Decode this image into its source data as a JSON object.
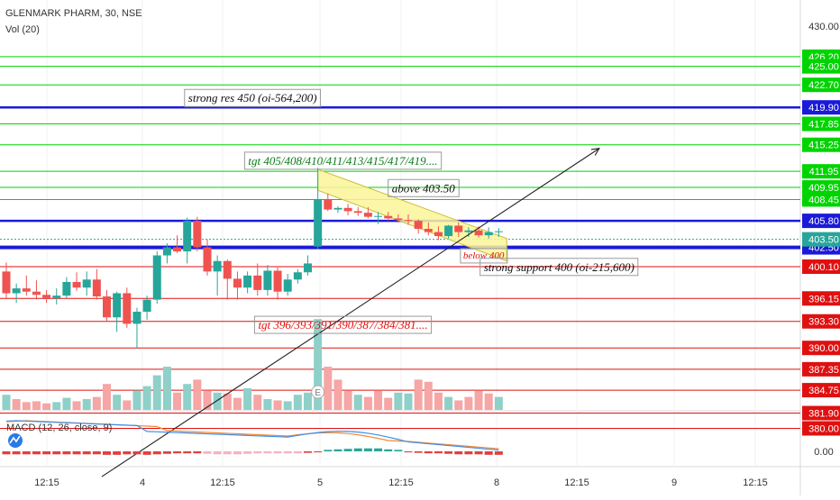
{
  "header": {
    "symbol_line": "GLENMARK PHARM, 30, NSE",
    "volume_label": "Vol (20)",
    "macd_label": "MACD (12, 26, close, 9)"
  },
  "colors": {
    "up": "#26a69a",
    "down": "#ef5350",
    "vol_up": "#8fd0c9",
    "vol_down": "#f5a6a5",
    "green_line": "#00d400",
    "blue_line": "#1a1ad8",
    "red_line": "#e01010",
    "channel_fill": "#fbf59a",
    "macd_line": "#3e8ee6",
    "signal_line": "#f08a3a",
    "hist_down": "#e04040",
    "hist_down_light": "#f5b3c0",
    "hist_up": "#26a69a"
  },
  "chart_data": {
    "type": "candlestick",
    "symbol": "GLENMARK PHARM",
    "timeframe": "30",
    "exchange": "NSE",
    "price_axis_ticks": [
      "430.00"
    ],
    "x_tick_labels": [
      "12:15",
      "4",
      "12:15",
      "5",
      "12:15",
      "8",
      "12:15",
      "9",
      "12:15"
    ],
    "ylim": [
      380,
      430
    ],
    "level_lines": [
      {
        "price": 426.2,
        "label": "426.20",
        "color": "green"
      },
      {
        "price": 425.0,
        "label": "425.00",
        "color": "green"
      },
      {
        "price": 422.7,
        "label": "422.70",
        "color": "green"
      },
      {
        "price": 419.9,
        "label": "419.90",
        "color": "blue"
      },
      {
        "price": 417.85,
        "label": "417.85",
        "color": "green"
      },
      {
        "price": 415.25,
        "label": "415.25",
        "color": "green"
      },
      {
        "price": 411.95,
        "label": "411.95",
        "color": "green"
      },
      {
        "price": 409.95,
        "label": "409.95",
        "color": "green"
      },
      {
        "price": 408.45,
        "label": "408.45",
        "color": "green"
      },
      {
        "price": 405.8,
        "label": "405.80",
        "color": "blue"
      },
      {
        "price": 402.5,
        "label": "402.50",
        "color": "blue"
      },
      {
        "price": 400.1,
        "label": "400.10",
        "color": "red"
      },
      {
        "price": 396.15,
        "label": "396.15",
        "color": "red"
      },
      {
        "price": 393.3,
        "label": "393.30",
        "color": "red"
      },
      {
        "price": 390.0,
        "label": "390.00",
        "color": "red"
      },
      {
        "price": 387.35,
        "label": "387.35",
        "color": "red"
      },
      {
        "price": 384.75,
        "label": "384.75",
        "color": "red"
      },
      {
        "price": 381.9,
        "label": "381.90",
        "color": "red"
      },
      {
        "price": 380.0,
        "label": "380.00",
        "color": "red"
      }
    ],
    "last_price": {
      "price": 403.5,
      "label": "403.50"
    },
    "annotations": [
      {
        "text": "strong res 450 (oi-564,200)",
        "anchor_price": 420.9,
        "bar": 24.5
      },
      {
        "text": "tgt 405/408/410/411/413/415/417/419....",
        "anchor_price": 413.1,
        "bar": 33.5
      },
      {
        "text": "above 403.50",
        "anchor_price": 409.7,
        "bar": 41.5
      },
      {
        "text": "below 400",
        "anchor_price": 401.4,
        "bar": 47.5
      },
      {
        "text": "strong support 400 (oi-215,600)",
        "anchor_price": 399.9,
        "bar": 55
      },
      {
        "text": "tgt 396/393/391/390/387/384/381....",
        "anchor_price": 392.7,
        "bar": 33.5
      }
    ],
    "candles": [
      {
        "o": 399.5,
        "h": 400.6,
        "l": 396.2,
        "c": 396.8
      },
      {
        "o": 396.8,
        "h": 398.0,
        "l": 395.6,
        "c": 397.4
      },
      {
        "o": 397.4,
        "h": 399.0,
        "l": 396.5,
        "c": 397.0
      },
      {
        "o": 397.0,
        "h": 398.4,
        "l": 396.0,
        "c": 396.6
      },
      {
        "o": 396.6,
        "h": 397.2,
        "l": 395.6,
        "c": 396.2
      },
      {
        "o": 396.2,
        "h": 397.4,
        "l": 395.4,
        "c": 396.5
      },
      {
        "o": 396.5,
        "h": 398.8,
        "l": 396.2,
        "c": 398.2
      },
      {
        "o": 398.2,
        "h": 399.4,
        "l": 397.1,
        "c": 397.5
      },
      {
        "o": 397.5,
        "h": 399.5,
        "l": 396.5,
        "c": 398.5
      },
      {
        "o": 398.5,
        "h": 399.8,
        "l": 396.0,
        "c": 396.4
      },
      {
        "o": 396.4,
        "h": 397.2,
        "l": 393.3,
        "c": 393.8
      },
      {
        "o": 393.8,
        "h": 397.0,
        "l": 392.0,
        "c": 396.8
      },
      {
        "o": 396.8,
        "h": 397.5,
        "l": 392.5,
        "c": 393.0
      },
      {
        "o": 393.0,
        "h": 395.0,
        "l": 390.0,
        "c": 394.5
      },
      {
        "o": 394.5,
        "h": 396.5,
        "l": 393.5,
        "c": 396.0
      },
      {
        "o": 396.0,
        "h": 402.0,
        "l": 395.5,
        "c": 401.5
      },
      {
        "o": 401.5,
        "h": 403.0,
        "l": 400.5,
        "c": 402.5
      },
      {
        "o": 402.5,
        "h": 404.0,
        "l": 401.8,
        "c": 402.0
      },
      {
        "o": 402.0,
        "h": 406.2,
        "l": 400.5,
        "c": 405.8
      },
      {
        "o": 405.8,
        "h": 406.3,
        "l": 402.0,
        "c": 402.5
      },
      {
        "o": 402.5,
        "h": 403.5,
        "l": 399.0,
        "c": 399.5
      },
      {
        "o": 399.5,
        "h": 401.5,
        "l": 396.5,
        "c": 400.8
      },
      {
        "o": 400.8,
        "h": 401.0,
        "l": 396.0,
        "c": 398.6
      },
      {
        "o": 398.6,
        "h": 399.5,
        "l": 396.0,
        "c": 397.5
      },
      {
        "o": 397.5,
        "h": 399.5,
        "l": 396.8,
        "c": 399.0
      },
      {
        "o": 399.0,
        "h": 400.5,
        "l": 396.5,
        "c": 397.2
      },
      {
        "o": 397.2,
        "h": 400.3,
        "l": 396.5,
        "c": 399.6
      },
      {
        "o": 399.6,
        "h": 400.0,
        "l": 396.0,
        "c": 397.0
      },
      {
        "o": 397.0,
        "h": 399.2,
        "l": 396.5,
        "c": 398.5
      },
      {
        "o": 398.5,
        "h": 399.8,
        "l": 398.0,
        "c": 399.4
      },
      {
        "o": 399.4,
        "h": 401.5,
        "l": 399.0,
        "c": 400.5
      },
      {
        "o": 402.6,
        "h": 412.4,
        "l": 402.3,
        "c": 408.4
      },
      {
        "o": 408.4,
        "h": 409.2,
        "l": 407.0,
        "c": 407.2
      },
      {
        "o": 407.2,
        "h": 407.6,
        "l": 406.8,
        "c": 407.4
      },
      {
        "o": 407.4,
        "h": 407.9,
        "l": 406.5,
        "c": 407.0
      },
      {
        "o": 407.0,
        "h": 407.5,
        "l": 406.4,
        "c": 406.8
      },
      {
        "o": 406.8,
        "h": 407.5,
        "l": 406.1,
        "c": 406.3
      },
      {
        "o": 406.3,
        "h": 406.9,
        "l": 405.4,
        "c": 406.4
      },
      {
        "o": 406.4,
        "h": 406.9,
        "l": 405.8,
        "c": 406.1
      },
      {
        "o": 406.1,
        "h": 406.6,
        "l": 405.6,
        "c": 405.9
      },
      {
        "o": 405.9,
        "h": 406.6,
        "l": 405.3,
        "c": 405.8
      },
      {
        "o": 405.8,
        "h": 406.0,
        "l": 404.2,
        "c": 404.8
      },
      {
        "o": 404.8,
        "h": 405.6,
        "l": 404.0,
        "c": 404.4
      },
      {
        "o": 404.4,
        "h": 405.1,
        "l": 403.4,
        "c": 403.9
      },
      {
        "o": 403.9,
        "h": 405.3,
        "l": 403.6,
        "c": 405.2
      },
      {
        "o": 405.2,
        "h": 405.6,
        "l": 403.8,
        "c": 404.4
      },
      {
        "o": 404.4,
        "h": 405.0,
        "l": 403.8,
        "c": 404.6
      },
      {
        "o": 404.6,
        "h": 405.1,
        "l": 403.7,
        "c": 404.0
      },
      {
        "o": 404.0,
        "h": 405.0,
        "l": 403.6,
        "c": 404.4
      },
      {
        "o": 404.4,
        "h": 404.9,
        "l": 403.8,
        "c": 404.5
      }
    ],
    "volume": [
      {
        "v": 0.35,
        "dir": "up"
      },
      {
        "v": 0.25,
        "dir": "down"
      },
      {
        "v": 0.18,
        "dir": "down"
      },
      {
        "v": 0.2,
        "dir": "down"
      },
      {
        "v": 0.15,
        "dir": "down"
      },
      {
        "v": 0.18,
        "dir": "up"
      },
      {
        "v": 0.28,
        "dir": "up"
      },
      {
        "v": 0.2,
        "dir": "down"
      },
      {
        "v": 0.25,
        "dir": "up"
      },
      {
        "v": 0.3,
        "dir": "down"
      },
      {
        "v": 0.6,
        "dir": "down"
      },
      {
        "v": 0.35,
        "dir": "up"
      },
      {
        "v": 0.22,
        "dir": "down"
      },
      {
        "v": 0.45,
        "dir": "up"
      },
      {
        "v": 0.55,
        "dir": "up"
      },
      {
        "v": 0.8,
        "dir": "up"
      },
      {
        "v": 1.0,
        "dir": "up"
      },
      {
        "v": 0.4,
        "dir": "down"
      },
      {
        "v": 0.6,
        "dir": "up"
      },
      {
        "v": 0.7,
        "dir": "down"
      },
      {
        "v": 0.45,
        "dir": "down"
      },
      {
        "v": 0.4,
        "dir": "up"
      },
      {
        "v": 0.38,
        "dir": "down"
      },
      {
        "v": 0.28,
        "dir": "down"
      },
      {
        "v": 0.5,
        "dir": "up"
      },
      {
        "v": 0.35,
        "dir": "down"
      },
      {
        "v": 0.25,
        "dir": "up"
      },
      {
        "v": 0.22,
        "dir": "down"
      },
      {
        "v": 0.2,
        "dir": "up"
      },
      {
        "v": 0.35,
        "dir": "up"
      },
      {
        "v": 0.4,
        "dir": "up"
      },
      {
        "v": 2.1,
        "dir": "up"
      },
      {
        "v": 1.0,
        "dir": "down"
      },
      {
        "v": 0.7,
        "dir": "down"
      },
      {
        "v": 0.45,
        "dir": "down"
      },
      {
        "v": 0.35,
        "dir": "up"
      },
      {
        "v": 0.3,
        "dir": "down"
      },
      {
        "v": 0.45,
        "dir": "down"
      },
      {
        "v": 0.28,
        "dir": "down"
      },
      {
        "v": 0.4,
        "dir": "up"
      },
      {
        "v": 0.38,
        "dir": "up"
      },
      {
        "v": 0.7,
        "dir": "down"
      },
      {
        "v": 0.65,
        "dir": "down"
      },
      {
        "v": 0.4,
        "dir": "down"
      },
      {
        "v": 0.3,
        "dir": "up"
      },
      {
        "v": 0.22,
        "dir": "down"
      },
      {
        "v": 0.3,
        "dir": "down"
      },
      {
        "v": 0.45,
        "dir": "down"
      },
      {
        "v": 0.38,
        "dir": "down"
      },
      {
        "v": 0.3,
        "dir": "up"
      }
    ],
    "macd_axis_label": "0.00",
    "macd_hist": [
      -0.3,
      -0.3,
      -0.3,
      -0.3,
      -0.3,
      -0.3,
      -0.3,
      -0.3,
      -0.3,
      -0.3,
      -0.35,
      -0.35,
      -0.3,
      -0.3,
      -0.35,
      -0.3,
      -0.25,
      -0.2,
      -0.2,
      -0.2,
      -0.25,
      -0.3,
      -0.3,
      -0.3,
      -0.25,
      -0.2,
      -0.2,
      -0.2,
      -0.2,
      -0.2,
      -0.15,
      -0.1,
      0.15,
      0.2,
      0.25,
      0.3,
      0.3,
      0.3,
      0.2,
      0.15,
      -0.1,
      -0.15,
      -0.2,
      -0.2,
      -0.25,
      -0.3,
      -0.3,
      -0.3,
      -0.35,
      -0.35
    ]
  }
}
